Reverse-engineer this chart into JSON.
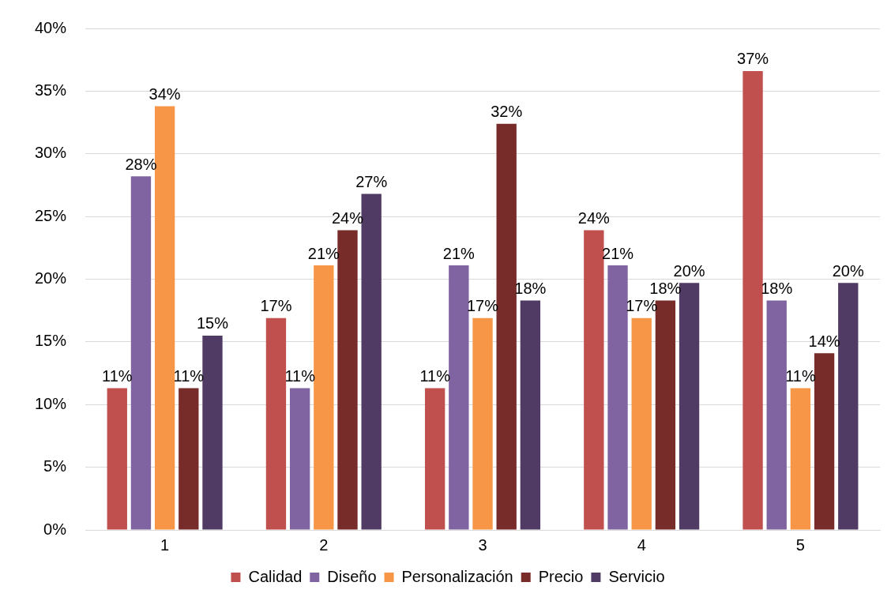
{
  "chart_data": {
    "type": "bar",
    "categories": [
      "1",
      "2",
      "3",
      "4",
      "5"
    ],
    "series": [
      {
        "name": "Calidad",
        "color": "#c0504d",
        "values": [
          11.3,
          16.9,
          11.3,
          23.9,
          36.6
        ],
        "value_labels": [
          "11%",
          "17%",
          "11%",
          "24%",
          "37%"
        ]
      },
      {
        "name": "Diseño",
        "color": "#8064a2",
        "values": [
          28.2,
          11.3,
          21.1,
          21.1,
          18.3
        ],
        "value_labels": [
          "28%",
          "11%",
          "21%",
          "21%",
          "18%"
        ]
      },
      {
        "name": "Personalización",
        "color": "#f79646",
        "values": [
          33.8,
          21.1,
          16.9,
          16.9,
          11.3
        ],
        "value_labels": [
          "34%",
          "21%",
          "17%",
          "17%",
          "11%"
        ]
      },
      {
        "name": "Precio",
        "color": "#772c2a",
        "values": [
          11.3,
          23.9,
          32.4,
          18.3,
          14.1
        ],
        "value_labels": [
          "11%",
          "24%",
          "32%",
          "18%",
          "14%"
        ]
      },
      {
        "name": "Servicio",
        "color": "#4f3b63",
        "values": [
          15.5,
          26.8,
          18.3,
          19.7,
          19.7
        ],
        "value_labels": [
          "15%",
          "27%",
          "18%",
          "20%",
          "20%"
        ]
      }
    ],
    "ylim": [
      0,
      40
    ],
    "yticks": [
      {
        "value": 0,
        "label": "0%"
      },
      {
        "value": 5,
        "label": "5%"
      },
      {
        "value": 10,
        "label": "10%"
      },
      {
        "value": 15,
        "label": "15%"
      },
      {
        "value": 20,
        "label": "20%"
      },
      {
        "value": 25,
        "label": "25%"
      },
      {
        "value": 30,
        "label": "30%"
      },
      {
        "value": 35,
        "label": "35%"
      },
      {
        "value": 40,
        "label": "40%"
      }
    ],
    "grid": "y",
    "legend": "bottom"
  }
}
